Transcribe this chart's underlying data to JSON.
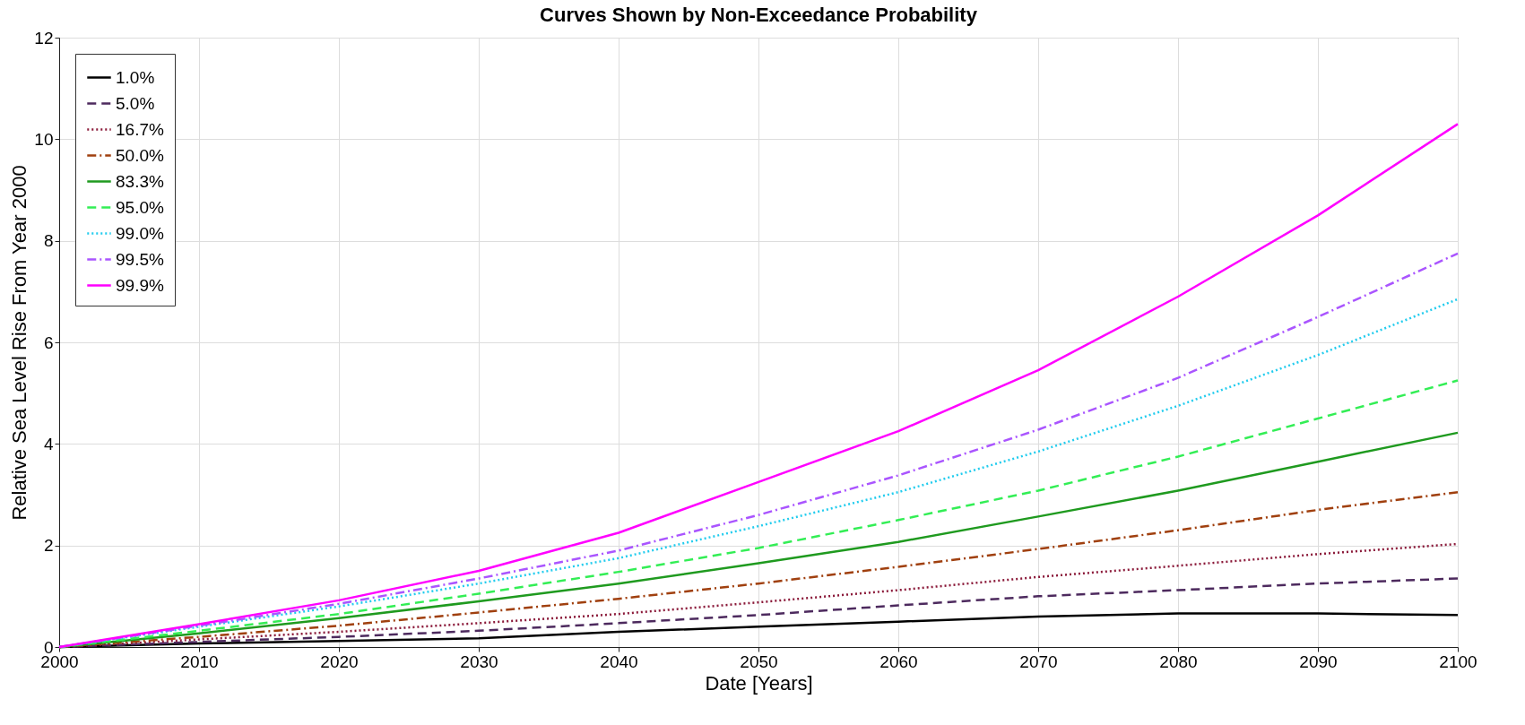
{
  "chart_data": {
    "type": "line",
    "title": "Curves Shown by Non-Exceedance Probability",
    "xlabel": "Date [Years]",
    "ylabel": "Relative Sea Level Rise From Year 2000",
    "x": [
      2000,
      2010,
      2020,
      2030,
      2040,
      2050,
      2060,
      2070,
      2080,
      2090,
      2100
    ],
    "xlim": [
      2000,
      2100
    ],
    "xticks": [
      2000,
      2010,
      2020,
      2030,
      2040,
      2050,
      2060,
      2070,
      2080,
      2090,
      2100
    ],
    "ylim": [
      0,
      12
    ],
    "yticks": [
      0,
      2,
      4,
      6,
      8,
      10,
      12
    ],
    "grid": true,
    "legend": "top left",
    "marker": "none",
    "series": [
      {
        "name": "1.0%",
        "color": "#000000",
        "line_style": "solid",
        "values": [
          0,
          0.07,
          0.12,
          0.17,
          0.3,
          0.4,
          0.5,
          0.6,
          0.66,
          0.66,
          0.63
        ]
      },
      {
        "name": "5.0%",
        "color": "#4d2a5e",
        "line_style": "dashed",
        "values": [
          0,
          0.1,
          0.2,
          0.32,
          0.47,
          0.63,
          0.82,
          1.0,
          1.12,
          1.25,
          1.35
        ]
      },
      {
        "name": "16.7%",
        "color": "#8b1a3a",
        "line_style": "dotted",
        "values": [
          0,
          0.15,
          0.3,
          0.47,
          0.65,
          0.88,
          1.12,
          1.38,
          1.6,
          1.83,
          2.03
        ]
      },
      {
        "name": "50.0%",
        "color": "#a0400f",
        "line_style": "dashdot",
        "values": [
          0,
          0.2,
          0.42,
          0.68,
          0.95,
          1.25,
          1.58,
          1.93,
          2.3,
          2.7,
          3.05
        ]
      },
      {
        "name": "83.3%",
        "color": "#1f9a1f",
        "line_style": "solid",
        "values": [
          0,
          0.27,
          0.57,
          0.9,
          1.25,
          1.65,
          2.07,
          2.57,
          3.08,
          3.65,
          4.22
        ]
      },
      {
        "name": "95.0%",
        "color": "#33ee55",
        "line_style": "dashed",
        "values": [
          0,
          0.32,
          0.65,
          1.05,
          1.48,
          1.95,
          2.5,
          3.08,
          3.75,
          4.5,
          5.25
        ]
      },
      {
        "name": "99.0%",
        "color": "#22ccee",
        "line_style": "dotted",
        "values": [
          0,
          0.4,
          0.8,
          1.25,
          1.75,
          2.38,
          3.05,
          3.85,
          4.75,
          5.75,
          6.85
        ]
      },
      {
        "name": "99.5%",
        "color": "#aa55ff",
        "line_style": "dashdot",
        "values": [
          0,
          0.42,
          0.85,
          1.35,
          1.9,
          2.6,
          3.38,
          4.28,
          5.3,
          6.5,
          7.75
        ]
      },
      {
        "name": "99.9%",
        "color": "#ff00ff",
        "line_style": "solid",
        "values": [
          0,
          0.45,
          0.92,
          1.5,
          2.25,
          3.25,
          4.25,
          5.45,
          6.9,
          8.5,
          10.3
        ]
      }
    ]
  }
}
